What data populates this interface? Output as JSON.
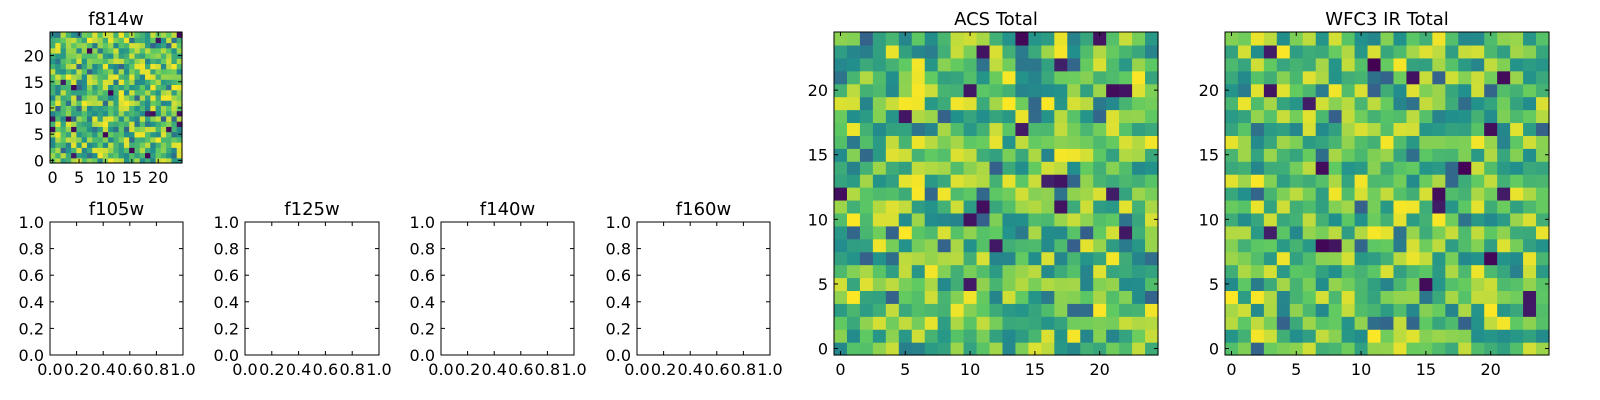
{
  "chart_data": [
    {
      "type": "heatmap",
      "title": "f814w",
      "xlabel": "",
      "ylabel": "",
      "grid": [
        25,
        25
      ],
      "xlim": [
        -0.5,
        24.5
      ],
      "ylim": [
        -0.5,
        24.5
      ],
      "xticks": [
        0,
        5,
        10,
        15,
        20
      ],
      "yticks": [
        0,
        5,
        10,
        15,
        20
      ],
      "colormap": "viridis",
      "value_range": [
        0,
        1
      ],
      "seed": 814
    },
    {
      "type": "line",
      "title": "f105w",
      "series": [],
      "xlim": [
        0.0,
        1.0
      ],
      "ylim": [
        0.0,
        1.0
      ],
      "xticks": [
        "0.0",
        "0.2",
        "0.4",
        "0.6",
        "0.8",
        "1.0"
      ],
      "yticks": [
        "0.0",
        "0.2",
        "0.4",
        "0.6",
        "0.8",
        "1.0"
      ]
    },
    {
      "type": "line",
      "title": "f125w",
      "series": [],
      "xlim": [
        0.0,
        1.0
      ],
      "ylim": [
        0.0,
        1.0
      ],
      "xticks": [
        "0.0",
        "0.2",
        "0.4",
        "0.6",
        "0.8",
        "1.0"
      ],
      "yticks": [
        "0.0",
        "0.2",
        "0.4",
        "0.6",
        "0.8",
        "1.0"
      ]
    },
    {
      "type": "line",
      "title": "f140w",
      "series": [],
      "xlim": [
        0.0,
        1.0
      ],
      "ylim": [
        0.0,
        1.0
      ],
      "xticks": [
        "0.0",
        "0.2",
        "0.4",
        "0.6",
        "0.8",
        "1.0"
      ],
      "yticks": [
        "0.0",
        "0.2",
        "0.4",
        "0.6",
        "0.8",
        "1.0"
      ]
    },
    {
      "type": "line",
      "title": "f160w",
      "series": [],
      "xlim": [
        0.0,
        1.0
      ],
      "ylim": [
        0.0,
        1.0
      ],
      "xticks": [
        "0.0",
        "0.2",
        "0.4",
        "0.6",
        "0.8",
        "1.0"
      ],
      "yticks": [
        "0.0",
        "0.2",
        "0.4",
        "0.6",
        "0.8",
        "1.0"
      ]
    },
    {
      "type": "heatmap",
      "title": "ACS Total",
      "xlabel": "",
      "ylabel": "",
      "grid": [
        25,
        25
      ],
      "xlim": [
        -0.5,
        24.5
      ],
      "ylim": [
        -0.5,
        24.5
      ],
      "xticks": [
        0,
        5,
        10,
        15,
        20
      ],
      "yticks": [
        0,
        5,
        10,
        15,
        20
      ],
      "colormap": "viridis",
      "value_range": [
        0,
        1
      ],
      "seed": 2021
    },
    {
      "type": "heatmap",
      "title": "WFC3 IR Total",
      "xlabel": "",
      "ylabel": "",
      "grid": [
        25,
        25
      ],
      "xlim": [
        -0.5,
        24.5
      ],
      "ylim": [
        -0.5,
        24.5
      ],
      "xticks": [
        0,
        5,
        10,
        15,
        20
      ],
      "yticks": [
        0,
        5,
        10,
        15,
        20
      ],
      "colormap": "viridis",
      "value_range": [
        0,
        1
      ],
      "seed": 3160
    }
  ],
  "colors": {
    "viridis_low": "#440154",
    "viridis_mid": "#21918c",
    "viridis_high": "#fde725",
    "axis": "#000000",
    "background": "#ffffff"
  }
}
